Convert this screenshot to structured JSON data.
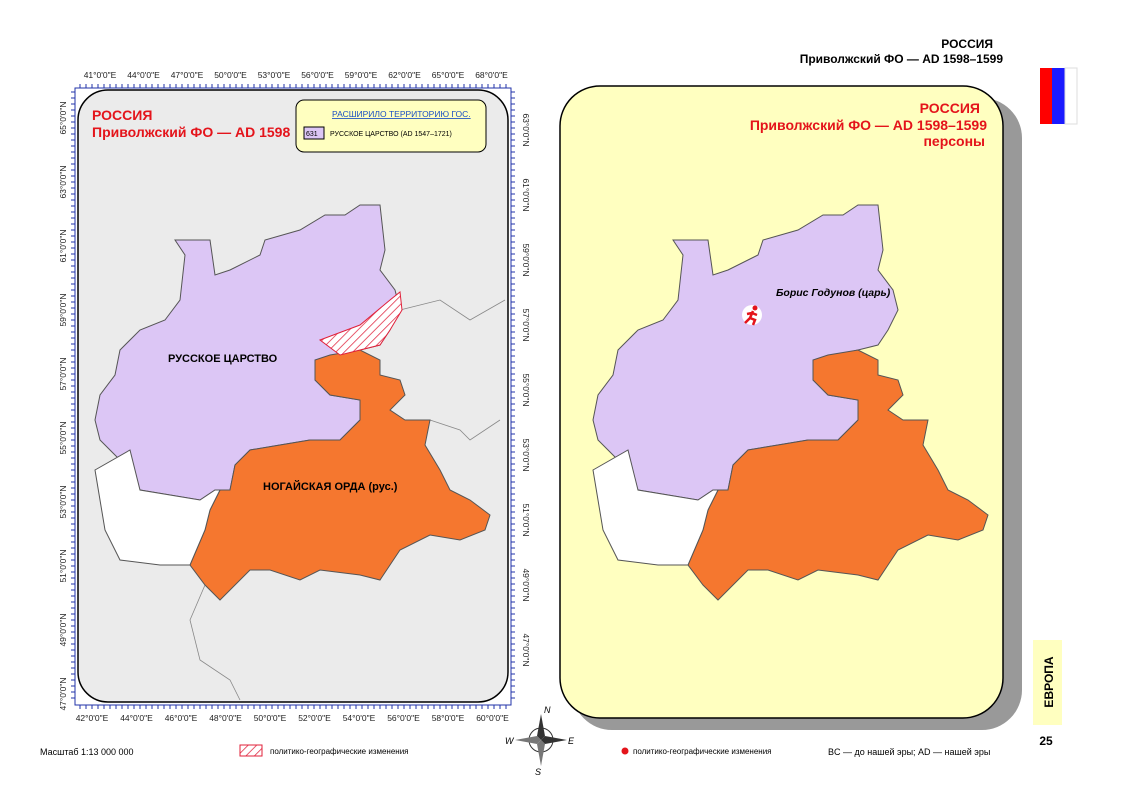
{
  "header": {
    "country": "РОССИЯ",
    "subtitle": "Приволжский ФО — AD 1598–1599"
  },
  "left_map": {
    "title": "РОССИЯ",
    "subtitle": "Приволжский ФО — AD 1598",
    "legend": {
      "title": "РАСШИРИЛО ТЕРРИТОРИЮ ГОС.",
      "items": [
        {
          "code": "631",
          "label": "РУССКОЕ ЦАРСТВО (AD 1547–1721)"
        }
      ]
    },
    "regions": [
      "РУССКОЕ ЦАРСТВО",
      "НОГАЙСКАЯ ОРДА (рус.)"
    ],
    "top_ticks": [
      "41°0'0\"E",
      "44°0'0\"E",
      "47°0'0\"E",
      "50°0'0\"E",
      "53°0'0\"E",
      "56°0'0\"E",
      "59°0'0\"E",
      "62°0'0\"E",
      "65°0'0\"E",
      "68°0'0\"E"
    ],
    "bottom_ticks": [
      "42°0'0\"E",
      "44°0'0\"E",
      "46°0'0\"E",
      "48°0'0\"E",
      "50°0'0\"E",
      "52°0'0\"E",
      "54°0'0\"E",
      "56°0'0\"E",
      "58°0'0\"E",
      "60°0'0\"E"
    ],
    "left_ticks": [
      "65°0'0\"N",
      "63°0'0\"N",
      "61°0'0\"N",
      "59°0'0\"N",
      "57°0'0\"N",
      "55°0'0\"N",
      "53°0'0\"N",
      "51°0'0\"N",
      "49°0'0\"N",
      "47°0'0\"N"
    ],
    "right_ticks": [
      "63°0'0\"N",
      "61°0'0\"N",
      "59°0'0\"N",
      "57°0'0\"N",
      "55°0'0\"N",
      "53°0'0\"N",
      "51°0'0\"N",
      "49°0'0\"N",
      "47°0'0\"N"
    ]
  },
  "right_map": {
    "title": "РОССИЯ",
    "subtitle": "Приволжский ФО — AD 1598–1599",
    "category": "персоны",
    "persons": [
      "Борис Годунов (царь)"
    ]
  },
  "compass": [
    "N",
    "W",
    "E",
    "S"
  ],
  "footer": {
    "scale": "Масштаб 1:13 000 000",
    "left_legend": "политико-географические изменения",
    "right_legend": "политико-географические изменения",
    "note": "BC — до нашей эры; AD — нашей эры"
  },
  "tab": {
    "section": "ЕВРОПА",
    "page": "25"
  }
}
